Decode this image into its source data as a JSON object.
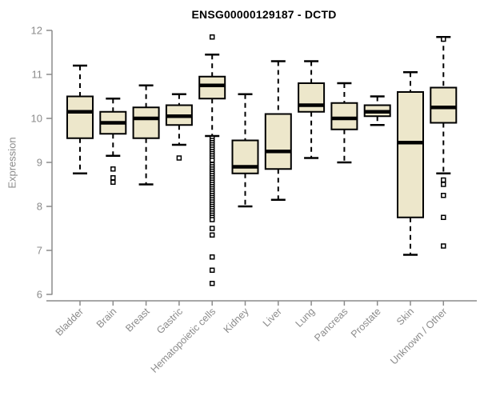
{
  "title": "ENSG00000129187 - DCTD",
  "colors": {
    "box_fill": "#ede7cb",
    "box_border": "#000000",
    "median": "#000000",
    "whisker": "#000000",
    "axis": "#8b8b8b",
    "tick_label": "#8b8b8b",
    "title_color": "#000000",
    "background": "#ffffff"
  },
  "chart_data": {
    "type": "boxplot",
    "title": "ENSG00000129187 - DCTD",
    "xlabel": "",
    "ylabel": "Expression",
    "ylim": [
      6,
      12
    ],
    "y_ticks": [
      6,
      7,
      8,
      9,
      10,
      11,
      12
    ],
    "grid": "off",
    "whisker_style": "dashed",
    "outlier_marker": "open-square",
    "categories": [
      "Bladder",
      "Brain",
      "Breast",
      "Gastric",
      "Hematopoietic cells",
      "Kidney",
      "Liver",
      "Lung",
      "Pancreas",
      "Prostate",
      "Skin",
      "Unknown / Other"
    ],
    "series": [
      {
        "name": "Bladder",
        "low": 8.75,
        "q1": 9.55,
        "median": 10.15,
        "q3": 10.5,
        "high": 11.2,
        "outliers": []
      },
      {
        "name": "Brain",
        "low": 9.15,
        "q1": 9.65,
        "median": 9.9,
        "q3": 10.15,
        "high": 10.45,
        "outliers": [
          8.85,
          8.65,
          8.55
        ]
      },
      {
        "name": "Breast",
        "low": 8.5,
        "q1": 9.55,
        "median": 10.0,
        "q3": 10.25,
        "high": 10.75,
        "outliers": []
      },
      {
        "name": "Gastric",
        "low": 9.4,
        "q1": 9.85,
        "median": 10.05,
        "q3": 10.3,
        "high": 10.55,
        "outliers": [
          9.1
        ]
      },
      {
        "name": "Hematopoietic cells",
        "low": 9.6,
        "q1": 10.45,
        "median": 10.75,
        "q3": 10.95,
        "high": 11.45,
        "outliers": [
          11.85,
          9.55,
          9.5,
          9.45,
          9.4,
          9.35,
          9.3,
          9.25,
          9.2,
          9.15,
          9.1,
          9.05,
          8.95,
          8.9,
          8.85,
          8.8,
          8.75,
          8.7,
          8.65,
          8.6,
          8.55,
          8.5,
          8.45,
          8.4,
          8.35,
          8.3,
          8.25,
          8.2,
          8.15,
          8.1,
          8.05,
          8.0,
          7.95,
          7.9,
          7.85,
          7.8,
          7.75,
          7.7,
          7.5,
          7.35,
          6.85,
          6.55,
          6.25
        ]
      },
      {
        "name": "Kidney",
        "low": 8.0,
        "q1": 8.75,
        "median": 8.9,
        "q3": 9.5,
        "high": 10.55,
        "outliers": []
      },
      {
        "name": "Liver",
        "low": 8.15,
        "q1": 8.85,
        "median": 9.25,
        "q3": 10.1,
        "high": 11.3,
        "outliers": []
      },
      {
        "name": "Lung",
        "low": 9.1,
        "q1": 10.15,
        "median": 10.3,
        "q3": 10.8,
        "high": 11.3,
        "outliers": []
      },
      {
        "name": "Pancreas",
        "low": 9.0,
        "q1": 9.75,
        "median": 10.0,
        "q3": 10.35,
        "high": 10.8,
        "outliers": []
      },
      {
        "name": "Prostate",
        "low": 9.85,
        "q1": 10.05,
        "median": 10.15,
        "q3": 10.3,
        "high": 10.5,
        "outliers": []
      },
      {
        "name": "Skin",
        "low": 6.9,
        "q1": 7.75,
        "median": 9.45,
        "q3": 10.6,
        "high": 11.05,
        "outliers": []
      },
      {
        "name": "Unknown / Other",
        "low": 8.75,
        "q1": 9.9,
        "median": 10.25,
        "q3": 10.7,
        "high": 11.85,
        "outliers": [
          11.8,
          8.6,
          8.5,
          8.25,
          7.75,
          7.1
        ]
      }
    ]
  }
}
